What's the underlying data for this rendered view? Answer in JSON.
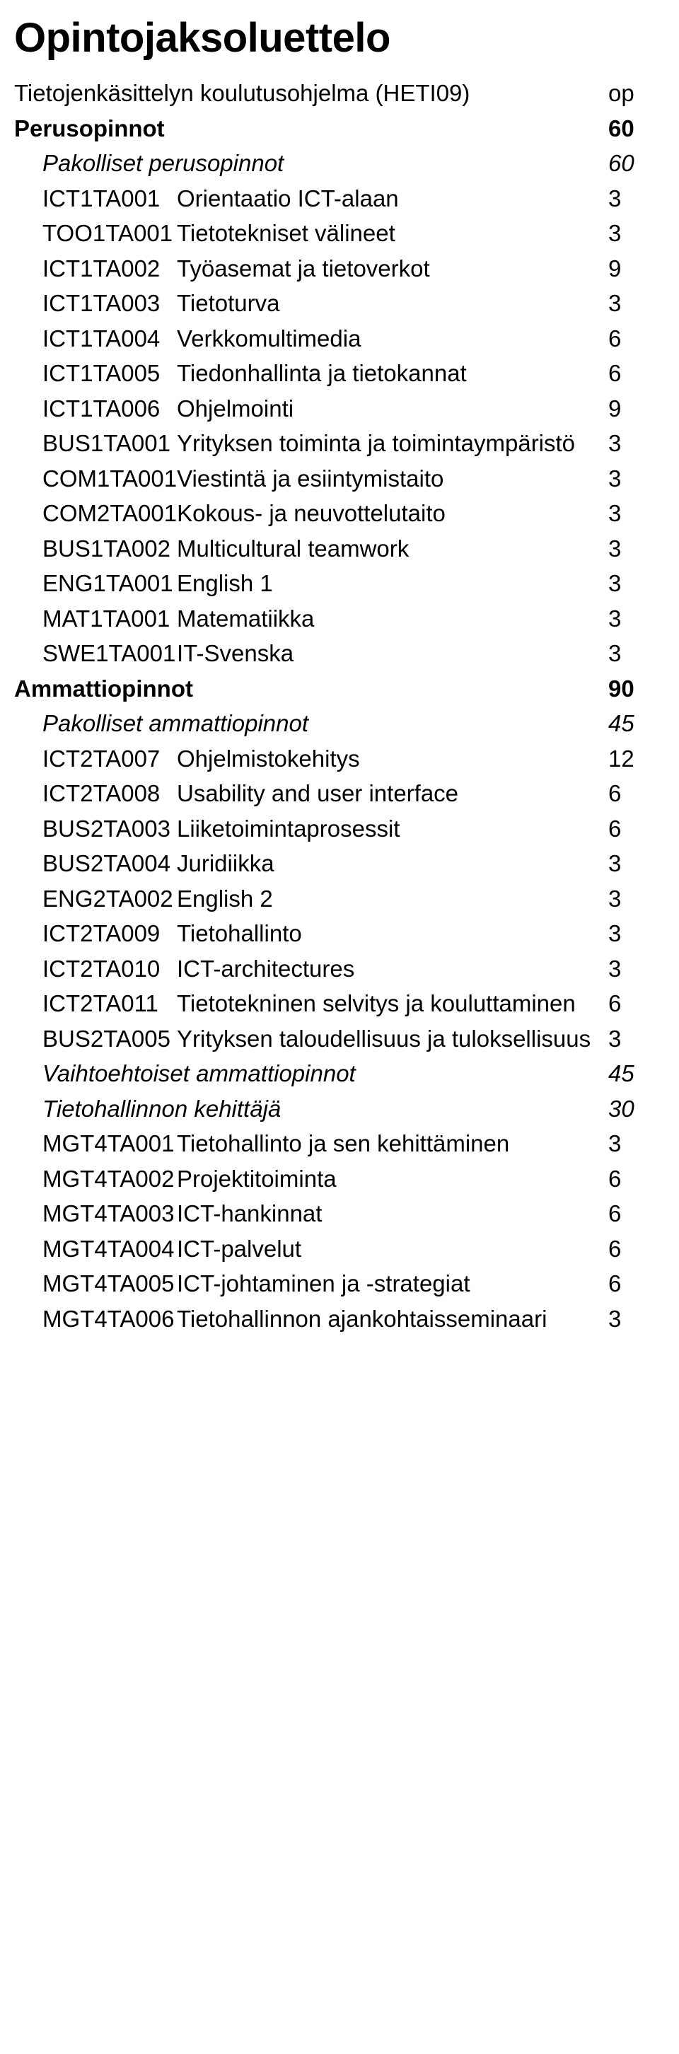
{
  "title": "Opintojaksoluettelo",
  "fonts": {
    "title_size_pt": 44,
    "body_size_pt": 25
  },
  "colors": {
    "text": "#000000",
    "background": "#ffffff"
  },
  "rows": [
    {
      "cls": "program",
      "c1": "Tietojenkäsittelyn koulutusohjelma (HETI09)",
      "c2": "",
      "c3": "op",
      "span": true
    },
    {
      "cls": "section",
      "c1": "Perusopinnot",
      "c2": "",
      "c3": "60",
      "span": true
    },
    {
      "cls": "sub-italic",
      "c1": "Pakolliset perusopinnot",
      "c2": "",
      "c3": "60",
      "span": true,
      "italicVal": true
    },
    {
      "cls": "",
      "c1": "ICT1TA001",
      "c2": "Orientaatio ICT-alaan",
      "c3": "3"
    },
    {
      "cls": "",
      "c1": "TOO1TA001",
      "c2": "Tietotekniset välineet",
      "c3": "3"
    },
    {
      "cls": "twoline",
      "c1": "ICT1TA002",
      "c2": "Työasemat ja tietoverkot",
      "c3": "9"
    },
    {
      "cls": "",
      "c1": "ICT1TA003",
      "c2": "Tietoturva",
      "c3": "3"
    },
    {
      "cls": "",
      "c1": "ICT1TA004",
      "c2": "Verkkomultimedia",
      "c3": "6"
    },
    {
      "cls": "twoline",
      "c1": "ICT1TA005",
      "c2": "Tiedonhallinta ja tietokannat",
      "c3": "6"
    },
    {
      "cls": "",
      "c1": "ICT1TA006",
      "c2": "Ohjelmointi",
      "c3": "9"
    },
    {
      "cls": "twoline",
      "c1": "BUS1TA001",
      "c2": "Yrityksen toiminta ja toimintaympäristö",
      "c3": "3"
    },
    {
      "cls": "",
      "c1": "COM1TA001",
      "c2": "Viestintä ja esiintymistaito",
      "c3": "3"
    },
    {
      "cls": "",
      "c1": "COM2TA001",
      "c2": "Kokous- ja neuvottelutaito",
      "c3": "3"
    },
    {
      "cls": "",
      "c1": "BUS1TA002",
      "c2": "Multicultural teamwork",
      "c3": "3"
    },
    {
      "cls": "",
      "c1": "ENG1TA001",
      "c2": "English 1",
      "c3": "3"
    },
    {
      "cls": "",
      "c1": "MAT1TA001",
      "c2": "Matematiikka",
      "c3": "3"
    },
    {
      "cls": "",
      "c1": "SWE1TA001",
      "c2": "IT-Svenska",
      "c3": "3"
    },
    {
      "cls": "section",
      "c1": "Ammattiopinnot",
      "c2": "",
      "c3": "90",
      "span": true
    },
    {
      "cls": "sub-italic",
      "c1": "Pakolliset ammattiopinnot",
      "c2": "",
      "c3": "45",
      "span": true,
      "italicVal": true
    },
    {
      "cls": "",
      "c1": "ICT2TA007",
      "c2": "Ohjelmistokehitys",
      "c3": "12"
    },
    {
      "cls": "",
      "c1": "ICT2TA008",
      "c2": "Usability and user interface",
      "c3": "6"
    },
    {
      "cls": "",
      "c1": "BUS2TA003",
      "c2": "Liiketoimintaprosessit",
      "c3": "6"
    },
    {
      "cls": "",
      "c1": "BUS2TA004",
      "c2": "Juridiikka",
      "c3": "3"
    },
    {
      "cls": "",
      "c1": "ENG2TA002",
      "c2": "English 2",
      "c3": "3"
    },
    {
      "cls": "",
      "c1": "ICT2TA009",
      "c2": "Tietohallinto",
      "c3": "3"
    },
    {
      "cls": "",
      "c1": "ICT2TA010",
      "c2": "ICT-architectures",
      "c3": "3"
    },
    {
      "cls": "twoline",
      "c1": "ICT2TA011",
      "c2": "Tietotekninen selvitys ja kouluttaminen",
      "c3": "6"
    },
    {
      "cls": "twoline",
      "c1": "BUS2TA005",
      "c2": "Yrityksen taloudellisuus ja tuloksellisuus",
      "c3": "3"
    },
    {
      "cls": "sub-italic",
      "c1": "Vaihtoehtoiset ammattiopinnot",
      "c2": "",
      "c3": "45",
      "span": true,
      "italicVal": true
    },
    {
      "cls": "sub-italic2",
      "c1": "Tietohallinnon kehittäjä",
      "c2": "",
      "c3": "30",
      "span": true,
      "italicVal": true
    },
    {
      "cls": "twoline",
      "c1": "MGT4TA001",
      "c2": "Tietohallinto ja sen kehittäminen",
      "c3": "3"
    },
    {
      "cls": "",
      "c1": "MGT4TA002",
      "c2": "Projektitoiminta",
      "c3": "6"
    },
    {
      "cls": "",
      "c1": "MGT4TA003",
      "c2": "ICT-hankinnat",
      "c3": "6"
    },
    {
      "cls": "",
      "c1": "MGT4TA004",
      "c2": "ICT-palvelut",
      "c3": "6"
    },
    {
      "cls": "twoline",
      "c1": "MGT4TA005",
      "c2": "ICT-johtaminen ja -strategiat",
      "c3": "6"
    },
    {
      "cls": "twoline",
      "c1": "MGT4TA006",
      "c2": "Tietohallinnon ajankohtaisseminaari",
      "c3": "3"
    }
  ]
}
